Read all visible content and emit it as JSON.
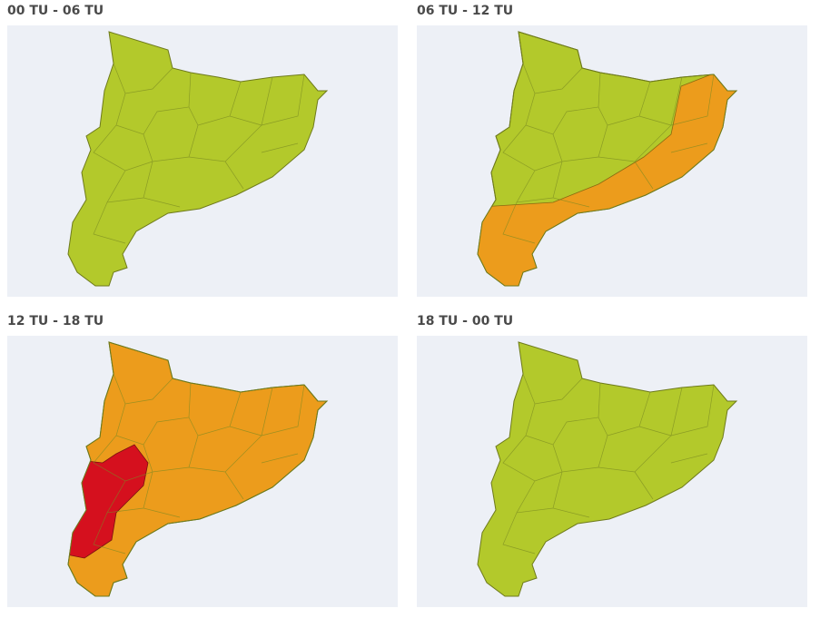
{
  "panels": [
    {
      "title": "00 TU - 06 TU"
    },
    {
      "title": "06 TU - 12 TU"
    },
    {
      "title": "12 TU - 18 TU"
    },
    {
      "title": "18 TU - 00 TU"
    }
  ]
}
